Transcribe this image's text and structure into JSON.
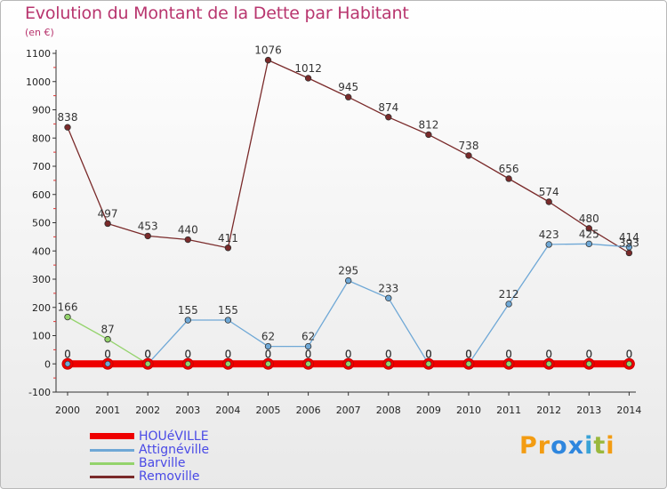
{
  "header": {
    "title": "Evolution du Montant de la Dette par Habitant",
    "unit": "(en €)"
  },
  "logo": {
    "text": "Proxiti",
    "letter_colors": [
      "#f39c12",
      "#f39c12",
      "#2e86de",
      "#2e86de",
      "#3aa3d6",
      "#9ab83d",
      "#f39c12"
    ]
  },
  "chart_data": {
    "type": "line",
    "x": [
      2000,
      2001,
      2002,
      2003,
      2004,
      2005,
      2006,
      2007,
      2008,
      2009,
      2010,
      2011,
      2012,
      2013,
      2014
    ],
    "ylim": [
      -100,
      1100
    ],
    "yticks": [
      -100,
      0,
      100,
      200,
      300,
      400,
      500,
      600,
      700,
      800,
      900,
      1000,
      1100
    ],
    "grid": false,
    "legend_position": "bottom-left",
    "series": [
      {
        "name": "HOUéVILLE",
        "color": "#ee0000",
        "values": [
          0,
          0,
          0,
          0,
          0,
          0,
          0,
          0,
          0,
          0,
          0,
          0,
          0,
          0,
          0
        ]
      },
      {
        "name": "Attignéville",
        "color": "#6fa8d6",
        "values": [
          0,
          0,
          0,
          155,
          155,
          62,
          62,
          295,
          233,
          0,
          0,
          212,
          423,
          425,
          414
        ]
      },
      {
        "name": "Barville",
        "color": "#94d36c",
        "values": [
          166,
          87,
          0,
          0,
          0,
          0,
          0,
          0,
          0,
          0,
          0,
          0,
          0,
          0,
          0
        ]
      },
      {
        "name": "Removille",
        "color": "#7a2a2a",
        "values": [
          838,
          497,
          453,
          440,
          411,
          1076,
          1012,
          945,
          874,
          812,
          738,
          656,
          574,
          480,
          393
        ]
      }
    ]
  }
}
